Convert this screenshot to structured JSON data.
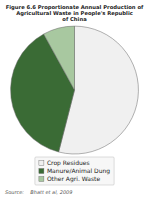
{
  "chart_data": {
    "type": "pie",
    "title": "Figure 6.6 Proportionate Annual Production of\nAgricultural Waste in People's Republic\nof China",
    "categories": [
      "Crop Residues",
      "Manure/Animal Dung",
      "Other Agri. Waste"
    ],
    "values": [
      54,
      38,
      8
    ],
    "colors": [
      "#f0f0f0",
      "#3a6b35",
      "#a8c8a0"
    ],
    "legend": "bottom",
    "annotations": [
      "Source:    Bhatt et al, 2009"
    ]
  }
}
